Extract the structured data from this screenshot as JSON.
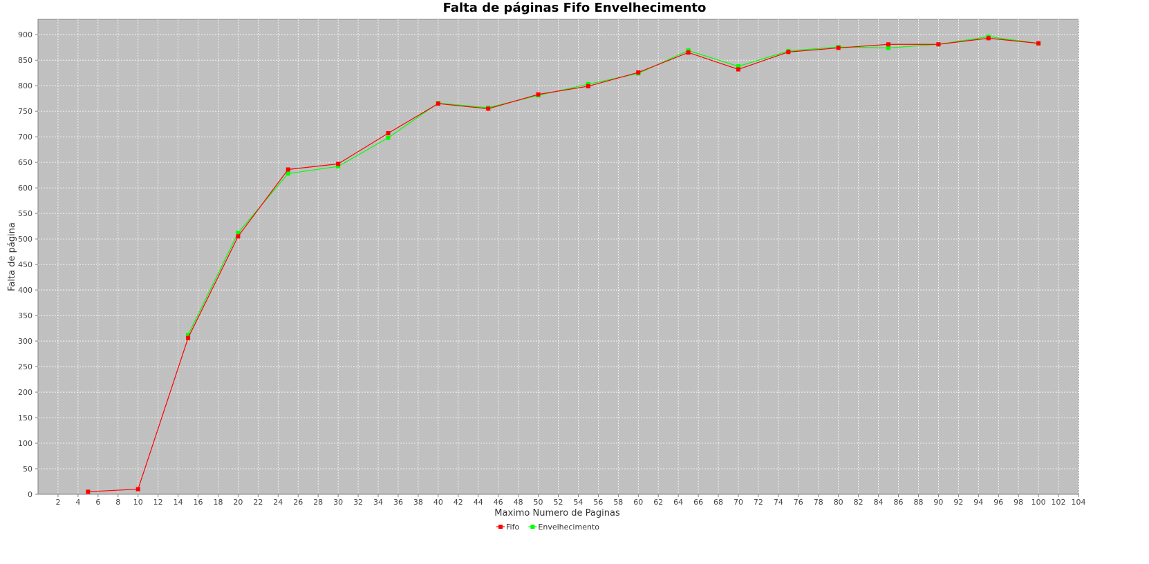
{
  "chart_data": {
    "type": "line",
    "title": "Falta de páginas Fifo Envelhecimento",
    "xlabel": "Maximo Numero de Paginas",
    "ylabel": "Falta de página",
    "xlim": [
      0,
      104
    ],
    "ylim": [
      0,
      930
    ],
    "x_ticks": [
      2,
      4,
      6,
      8,
      10,
      12,
      14,
      16,
      18,
      20,
      22,
      24,
      26,
      28,
      30,
      32,
      34,
      36,
      38,
      40,
      42,
      44,
      46,
      48,
      50,
      52,
      54,
      56,
      58,
      60,
      62,
      64,
      66,
      68,
      70,
      72,
      74,
      76,
      78,
      80,
      82,
      84,
      86,
      88,
      90,
      92,
      94,
      96,
      98,
      100,
      102,
      104
    ],
    "y_ticks": [
      0,
      50,
      100,
      150,
      200,
      250,
      300,
      350,
      400,
      450,
      500,
      550,
      600,
      650,
      700,
      750,
      800,
      850,
      900
    ],
    "grid": true,
    "legend_position": "bottom-center",
    "series": [
      {
        "name": "Fifo",
        "color": "#ff0000",
        "x": [
          5,
          10,
          15,
          20,
          25,
          30,
          35,
          40,
          45,
          50,
          55,
          60,
          65,
          70,
          75,
          80,
          85,
          90,
          95,
          100
        ],
        "values": [
          5,
          10,
          306,
          505,
          636,
          647,
          707,
          765,
          755,
          783,
          799,
          826,
          865,
          832,
          866,
          874,
          881,
          881,
          893,
          883
        ]
      },
      {
        "name": "Envelhecimento",
        "color": "#00ff00",
        "x": [
          15,
          20,
          25,
          30,
          35,
          40,
          45,
          50,
          55,
          60,
          65,
          70,
          75,
          80,
          85,
          90,
          95,
          100
        ],
        "values": [
          312,
          512,
          628,
          642,
          698,
          766,
          757,
          781,
          803,
          824,
          869,
          838,
          868,
          876,
          874,
          881,
          896,
          883
        ]
      }
    ]
  }
}
